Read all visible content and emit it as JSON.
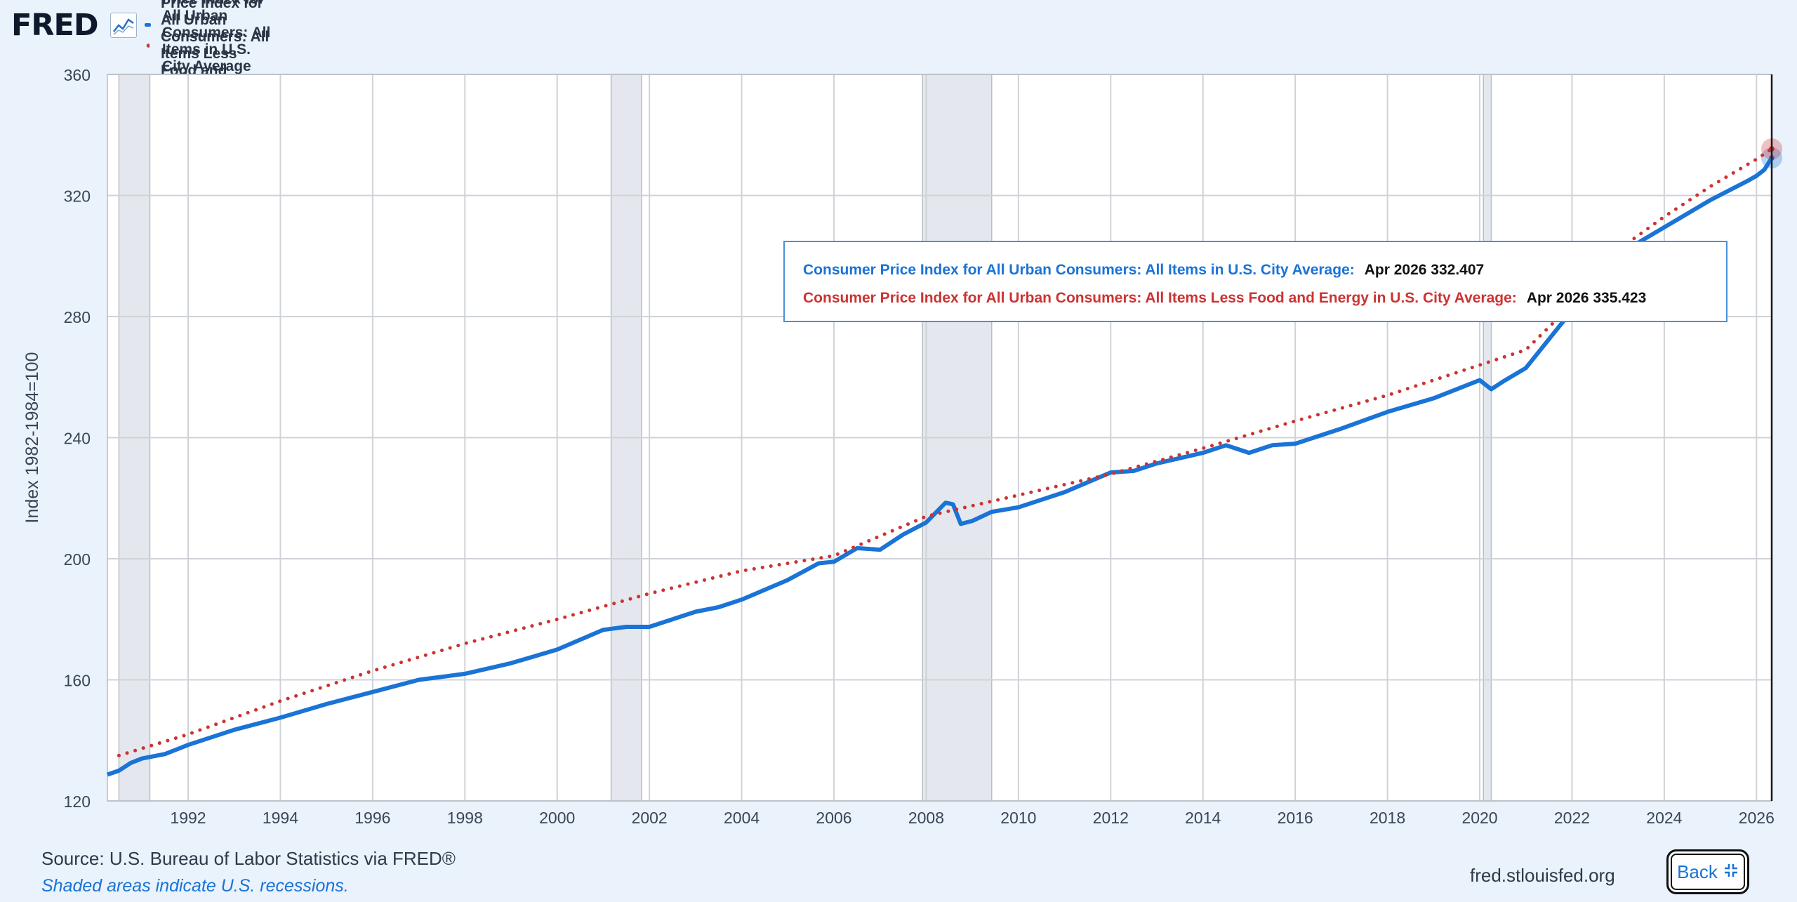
{
  "header": {
    "logo_text": "FRED",
    "logo_icon": "line-chart-icon"
  },
  "legend": [
    {
      "label": "Consumer Price Index for All Urban Consumers: All Items in U.S. City Average",
      "style": "solid",
      "color": "#1a73d6"
    },
    {
      "label": "Consumer Price Index for All Urban Consumers: All Items Less Food and Energy in U.S. City Average",
      "style": "dotted",
      "color": "#cc3333"
    }
  ],
  "tooltip": {
    "series1_label": "Consumer Price Index for All Urban Consumers: All Items in U.S. City Average:",
    "series1_value": "Apr 2026 332.407",
    "series2_label": "Consumer Price Index for All Urban Consumers: All Items Less Food and Energy in U.S. City Average:",
    "series2_value": "Apr 2026 335.423"
  },
  "footer": {
    "source": "Source: U.S. Bureau of Labor Statistics via FRED®",
    "note": "Shaded areas indicate U.S. recessions.",
    "url": "fred.stlouisfed.org",
    "back_label": "Back",
    "back_icon": "collapse-icon"
  },
  "chart_data": {
    "type": "line",
    "title": "",
    "xlabel": "",
    "ylabel": "Index 1982-1984=100",
    "xlim": [
      1990.25,
      2026.33
    ],
    "ylim": [
      120,
      360
    ],
    "yticks": [
      120,
      160,
      200,
      240,
      280,
      320,
      360
    ],
    "xticks": [
      "1992",
      "1994",
      "1996",
      "1998",
      "2000",
      "2002",
      "2004",
      "2006",
      "2008",
      "2010",
      "2012",
      "2014",
      "2016",
      "2018",
      "2020",
      "2022",
      "2024",
      "2026"
    ],
    "grid": true,
    "legend_position": "top-left",
    "recessions": [
      [
        1990.5,
        1991.17
      ],
      [
        2001.17,
        2001.83
      ],
      [
        2007.92,
        2009.42
      ],
      [
        2020.08,
        2020.25
      ]
    ],
    "series": [
      {
        "name": "Consumer Price Index for All Urban Consumers: All Items in U.S. City Average",
        "color": "#1a73d6",
        "style": "solid",
        "x": [
          1990.25,
          1990.5,
          1990.75,
          1991.0,
          1991.5,
          1992.0,
          1993.0,
          1994.0,
          1995.0,
          1996.0,
          1997.0,
          1998.0,
          1999.0,
          2000.0,
          2001.0,
          2001.5,
          2002.0,
          2003.0,
          2003.5,
          2004.0,
          2005.0,
          2005.67,
          2006.0,
          2006.5,
          2007.0,
          2007.5,
          2008.0,
          2008.42,
          2008.58,
          2008.75,
          2009.0,
          2009.42,
          2010.0,
          2011.0,
          2012.0,
          2012.5,
          2013.0,
          2014.0,
          2014.5,
          2015.0,
          2015.5,
          2016.0,
          2017.0,
          2018.0,
          2019.0,
          2020.0,
          2020.25,
          2020.5,
          2021.0,
          2021.5,
          2022.0,
          2022.5,
          2023.0,
          2024.0,
          2025.0,
          2025.83,
          2026.0,
          2026.17,
          2026.33
        ],
        "y": [
          128.7,
          130.0,
          132.5,
          134.0,
          135.5,
          138.5,
          143.5,
          147.5,
          152.0,
          156.0,
          160.0,
          162.0,
          165.5,
          170.0,
          176.5,
          177.5,
          177.5,
          182.5,
          184.0,
          186.5,
          193.0,
          198.5,
          199.0,
          203.5,
          203.0,
          208.0,
          212.0,
          218.5,
          218.0,
          211.5,
          212.5,
          215.5,
          217.0,
          222.0,
          228.5,
          229.0,
          231.5,
          235.0,
          237.5,
          235.0,
          237.5,
          238.0,
          243.0,
          248.5,
          253.0,
          259.0,
          256.0,
          258.5,
          263.0,
          272.5,
          282.0,
          294.5,
          300.5,
          309.5,
          318.5,
          325.0,
          326.5,
          328.5,
          332.4
        ]
      },
      {
        "name": "Consumer Price Index for All Urban Consumers: All Items Less Food and Energy in U.S. City Average",
        "color": "#cc3333",
        "style": "dotted",
        "x": [
          1990.5,
          1992.0,
          1994.0,
          1996.0,
          1998.0,
          2000.0,
          2002.0,
          2004.0,
          2006.0,
          2008.0,
          2010.0,
          2012.0,
          2014.0,
          2016.0,
          2018.0,
          2020.0,
          2021.0,
          2022.0,
          2023.0,
          2024.0,
          2025.0,
          2026.0,
          2026.33
        ],
        "y": [
          135.0,
          142.0,
          153.0,
          163.0,
          172.0,
          180.0,
          188.5,
          196.0,
          201.0,
          214.0,
          221.0,
          228.0,
          236.5,
          245.5,
          254.0,
          264.0,
          269.0,
          284.0,
          302.0,
          313.0,
          323.0,
          332.0,
          335.4
        ]
      }
    ]
  }
}
